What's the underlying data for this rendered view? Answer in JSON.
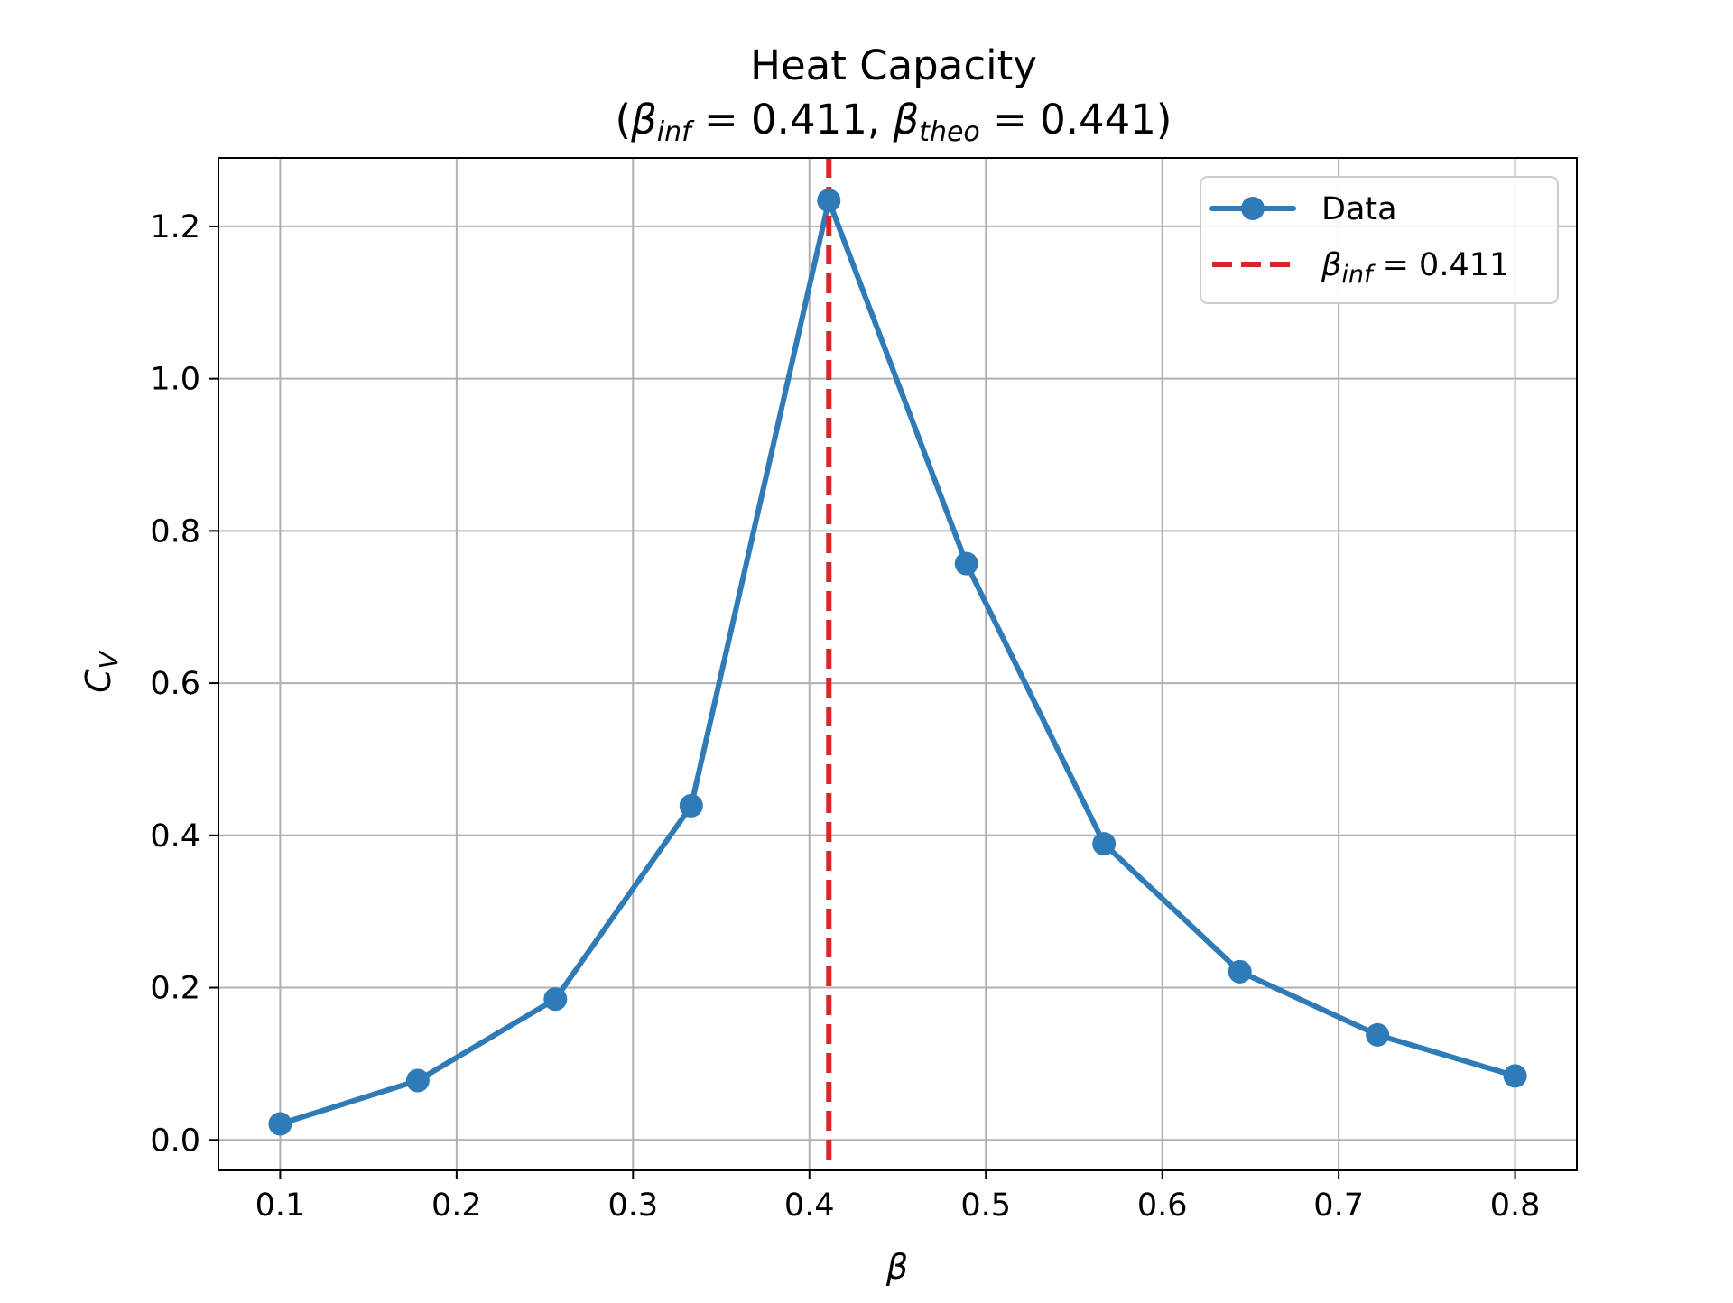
{
  "chart_data": {
    "type": "line",
    "title": {
      "line1": "Heat Capacity",
      "open": "(",
      "sym1": "β",
      "sub1": "inf",
      "val1": " = 0.411, ",
      "sym2": "β",
      "sub2": "theo",
      "val2": " = 0.441)"
    },
    "xlabel": "β",
    "ylabel": {
      "base": "C",
      "sub": "V"
    },
    "xlim": [
      0.065,
      0.835
    ],
    "ylim": [
      -0.04,
      1.29
    ],
    "xticks": [
      0.1,
      0.2,
      0.3,
      0.4,
      0.5,
      0.6,
      0.7,
      0.8
    ],
    "yticks": [
      0.0,
      0.2,
      0.4,
      0.6,
      0.8,
      1.0,
      1.2
    ],
    "xtick_labels": [
      "0.1",
      "0.2",
      "0.3",
      "0.4",
      "0.5",
      "0.6",
      "0.7",
      "0.8"
    ],
    "ytick_labels": [
      "0.0",
      "0.2",
      "0.4",
      "0.6",
      "0.8",
      "1.0",
      "1.2"
    ],
    "grid": true,
    "series": [
      {
        "name": "Data",
        "color": "#2f7bb8",
        "marker": "circle",
        "x": [
          0.1,
          0.178,
          0.256,
          0.333,
          0.411,
          0.489,
          0.567,
          0.644,
          0.722,
          0.8
        ],
        "y": [
          0.021,
          0.078,
          0.185,
          0.439,
          1.234,
          0.757,
          0.389,
          0.221,
          0.138,
          0.084
        ]
      }
    ],
    "vline": {
      "x": 0.411,
      "color": "#d62728",
      "style": "dashed",
      "label": {
        "sym": "β",
        "sub": "inf",
        "val": " = 0.411"
      }
    },
    "legend": {
      "position": "top-right"
    }
  }
}
